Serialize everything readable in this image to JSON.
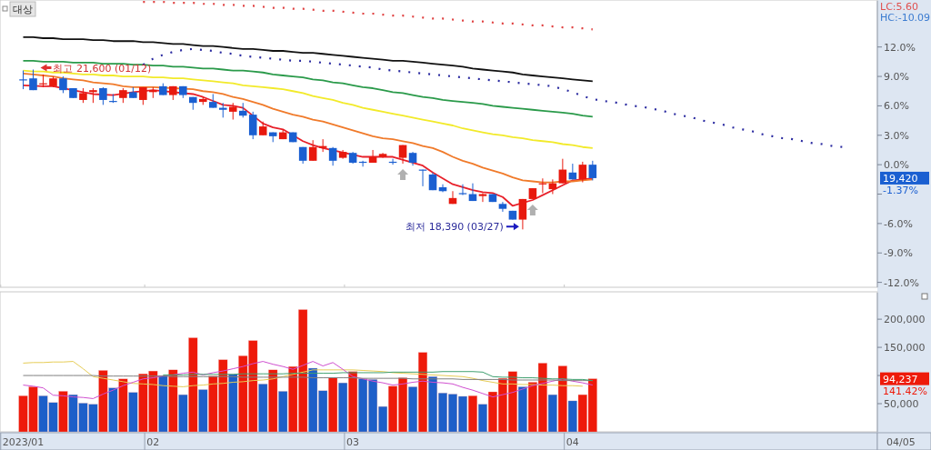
{
  "chart_data": [
    {
      "type": "candlestick",
      "tick_labels": "y",
      "categories": [
        "2023/01",
        null,
        null,
        null,
        null,
        null,
        null,
        null,
        null,
        null,
        null,
        null,
        null,
        "02",
        null,
        null,
        null,
        null,
        null,
        null,
        null,
        null,
        null,
        null,
        null,
        null,
        null,
        null,
        null,
        null,
        null,
        null,
        null,
        "03",
        null,
        null,
        null,
        null,
        null,
        null,
        null,
        null,
        null,
        null,
        null,
        null,
        null,
        null,
        null,
        null,
        null,
        null,
        null,
        null,
        null,
        "04",
        null,
        null,
        null,
        null,
        null,
        null,
        null,
        null,
        null,
        null,
        null,
        null,
        null,
        null,
        null,
        null,
        null,
        null,
        null,
        null,
        null,
        null,
        null,
        null,
        null,
        null,
        null,
        null,
        null,
        null
      ],
      "ylim": [
        -12.5,
        16.7
      ],
      "yticks": [
        {
          "value": -12,
          "label": "-12.0%"
        },
        {
          "value": -9,
          "label": "-9.0%"
        },
        {
          "value": -6,
          "label": "-6.0%"
        },
        {
          "value": -3,
          "label": null
        },
        {
          "value": 0,
          "label": "0.0%"
        },
        {
          "value": 3,
          "label": "3.0%"
        },
        {
          "value": 6,
          "label": "6.0%"
        },
        {
          "value": 9,
          "label": "9.0%"
        },
        {
          "value": 12,
          "label": "12.0%"
        }
      ],
      "ohlc": [
        [
          8.7,
          9.6,
          7.7,
          8.6
        ],
        [
          8.8,
          9.7,
          7.6,
          7.6
        ],
        [
          8.2,
          9.2,
          7.9,
          8.3
        ],
        [
          8.0,
          9.0,
          7.9,
          8.8
        ],
        [
          8.8,
          9.0,
          7.3,
          7.6
        ],
        [
          7.8,
          7.8,
          6.8,
          6.8
        ],
        [
          6.6,
          7.8,
          6.3,
          7.3
        ],
        [
          7.4,
          7.8,
          6.3,
          7.6
        ],
        [
          7.8,
          7.9,
          6.1,
          6.6
        ],
        [
          6.5,
          7.2,
          6.3,
          6.4
        ],
        [
          6.8,
          7.8,
          6.3,
          7.6
        ],
        [
          7.4,
          7.9,
          6.8,
          6.8
        ],
        [
          6.6,
          7.9,
          6.1,
          7.9
        ],
        [
          7.4,
          7.9,
          6.8,
          7.6
        ],
        [
          8.0,
          8.3,
          7.1,
          7.1
        ],
        [
          7.1,
          8.0,
          6.6,
          8.0
        ],
        [
          8.0,
          8.0,
          6.8,
          7.1
        ],
        [
          6.9,
          6.9,
          5.6,
          6.3
        ],
        [
          6.4,
          6.9,
          6.1,
          6.7
        ],
        [
          6.4,
          7.2,
          5.8,
          5.8
        ],
        [
          5.8,
          6.3,
          4.8,
          5.6
        ],
        [
          5.4,
          6.3,
          4.6,
          5.9
        ],
        [
          5.5,
          6.3,
          4.8,
          5.0
        ],
        [
          5.1,
          5.4,
          2.6,
          3.0
        ],
        [
          3.0,
          4.4,
          3.0,
          3.9
        ],
        [
          3.3,
          3.3,
          2.3,
          2.9
        ],
        [
          2.6,
          3.6,
          2.6,
          3.3
        ],
        [
          3.3,
          3.3,
          2.3,
          2.3
        ],
        [
          1.8,
          1.8,
          0.1,
          0.4
        ],
        [
          0.4,
          2.5,
          0.4,
          1.8
        ],
        [
          1.7,
          2.6,
          1.3,
          1.9
        ],
        [
          1.7,
          1.8,
          -0.1,
          0.4
        ],
        [
          0.7,
          1.5,
          0.6,
          1.3
        ],
        [
          1.2,
          1.3,
          0.1,
          0.2
        ],
        [
          0.3,
          0.4,
          -0.2,
          0.2
        ],
        [
          0.2,
          1.5,
          0.2,
          0.8
        ],
        [
          0.8,
          1.2,
          0.7,
          1.1
        ],
        [
          0.3,
          0.6,
          0.0,
          0.2
        ],
        [
          0.7,
          2.0,
          0.1,
          2.0
        ],
        [
          1.2,
          1.3,
          -0.1,
          0.2
        ],
        [
          -0.5,
          -0.5,
          -2.2,
          -0.6
        ],
        [
          -1.0,
          -0.8,
          -2.6,
          -2.6
        ],
        [
          -2.3,
          -2.0,
          -2.8,
          -2.7
        ],
        [
          -4.0,
          -2.7,
          -4.0,
          -3.4
        ],
        [
          -2.9,
          -2.0,
          -3.1,
          -3.0
        ],
        [
          -3.0,
          -1.9,
          -3.7,
          -3.7
        ],
        [
          -3.2,
          -2.9,
          -3.8,
          -3.0
        ],
        [
          -3.0,
          -3.0,
          -3.8,
          -3.8
        ],
        [
          -4.0,
          -3.8,
          -4.8,
          -4.5
        ],
        [
          -4.7,
          -4.7,
          -5.6,
          -5.6
        ],
        [
          -5.6,
          -3.5,
          -6.6,
          -3.5
        ],
        [
          -3.5,
          -2.4,
          -3.5,
          -2.4
        ],
        [
          -2.0,
          -1.4,
          -2.9,
          -1.9
        ],
        [
          -2.5,
          -1.5,
          -3.0,
          -1.9
        ],
        [
          -1.9,
          0.6,
          -1.9,
          -0.5
        ],
        [
          -0.8,
          0.1,
          -1.5,
          -1.5
        ],
        [
          -1.5,
          0.3,
          -1.8,
          0.0
        ],
        [
          0.0,
          0.4,
          -1.6,
          -1.37
        ],
        null,
        null,
        null,
        null,
        null,
        null,
        null,
        null,
        null,
        null,
        null,
        null,
        null,
        null,
        null,
        null,
        null,
        null,
        null,
        null,
        null,
        null,
        null,
        null,
        null,
        null,
        null,
        null
      ],
      "colors": [
        "#1a5fd1",
        "#1a5fd1",
        "#e8190e",
        "#e8190e",
        "#1a5fd1",
        "#1a5fd1",
        "#e8190e",
        "#e8190e",
        "#1a5fd1",
        "#1a5fd1",
        "#e8190e",
        "#1a5fd1",
        "#e8190e",
        "#e8190e",
        "#1a5fd1",
        "#e8190e",
        "#1a5fd1",
        "#1a5fd1",
        "#e8190e",
        "#1a5fd1",
        "#1a5fd1",
        "#e8190e",
        "#1a5fd1",
        "#1a5fd1",
        "#e8190e",
        "#1a5fd1",
        "#e8190e",
        "#1a5fd1",
        "#1a5fd1",
        "#e8190e",
        "#e8190e",
        "#1a5fd1",
        "#e8190e",
        "#1a5fd1",
        "#1a5fd1",
        "#e8190e",
        "#e8190e",
        "#1a5fd1",
        "#e8190e",
        "#1a5fd1",
        "#1a5fd1",
        "#1a5fd1",
        "#1a5fd1",
        "#e8190e",
        "#1a5fd1",
        "#1a5fd1",
        "#e8190e",
        "#1a5fd1",
        "#1a5fd1",
        "#1a5fd1",
        "#e8190e",
        "#e8190e",
        "#e8190e",
        "#e8190e",
        "#e8190e",
        "#1a5fd1",
        "#e8190e",
        "#1a5fd1",
        null,
        null,
        null,
        null,
        null,
        null,
        null,
        null,
        null,
        null,
        null,
        null,
        null,
        null,
        null,
        null,
        null,
        null,
        null,
        null,
        null,
        null,
        null,
        null,
        null,
        null,
        null,
        null
      ],
      "series": [
        {
          "type": "line",
          "color": "#e8202a",
          "values": [
            8.1,
            null,
            8.0,
            8.0,
            null,
            null,
            7.4,
            7.2,
            null,
            7.1,
            null,
            7.4,
            null,
            7.6,
            null,
            null,
            null,
            7.2,
            6.9,
            6.5,
            6.1,
            6.0,
            5.8,
            null,
            4.2,
            3.8,
            3.6,
            null,
            2.4,
            2.0,
            1.7,
            null,
            null,
            null,
            0.8,
            0.8,
            0.8,
            0.8,
            null,
            null,
            -0.1,
            -0.8,
            -1.4,
            -2.0,
            -2.3,
            -2.6,
            -2.8,
            -2.9,
            -3.3,
            -4.2,
            null,
            -3.6,
            -3.1,
            -2.6,
            -2.1,
            -1.6,
            -1.5,
            -1.4,
            null,
            null,
            null,
            null,
            null,
            null,
            null,
            null,
            null,
            null,
            null,
            null,
            null,
            null,
            null,
            null,
            null,
            null,
            null,
            null,
            null,
            null,
            null,
            null,
            null,
            null,
            null,
            null
          ]
        },
        {
          "type": "line",
          "color": "#f07a2a",
          "values": [
            9.3,
            9.2,
            9.1,
            9.0,
            8.8,
            8.7,
            8.6,
            8.4,
            8.3,
            8.2,
            8.0,
            7.9,
            7.9,
            7.9,
            null,
            7.8,
            null,
            7.7,
            7.5,
            7.4,
            7.2,
            6.9,
            6.7,
            6.4,
            6.1,
            5.7,
            5.4,
            5.1,
            4.9,
            4.6,
            4.4,
            4.1,
            3.8,
            3.5,
            3.2,
            2.9,
            2.7,
            2.6,
            2.4,
            2.2,
            1.9,
            1.7,
            1.3,
            0.8,
            0.4,
            0.1,
            -0.3,
            -0.6,
            -0.9,
            -1.3,
            -1.6,
            -1.7,
            -1.8,
            -1.8,
            -1.7,
            -1.7,
            -1.6,
            -1.5,
            null,
            null,
            null,
            null,
            null,
            null,
            null,
            null,
            null,
            null,
            null,
            null,
            null,
            null,
            null,
            null,
            null,
            null,
            null,
            null,
            null,
            null,
            null,
            null,
            null,
            null,
            null,
            null
          ]
        },
        {
          "type": "line",
          "color": "#f2ea2a",
          "values": [
            9.6,
            9.5,
            9.5,
            9.4,
            9.4,
            9.3,
            9.2,
            9.2,
            9.1,
            9.1,
            9.0,
            9.0,
            9.0,
            8.9,
            8.9,
            8.8,
            8.8,
            8.7,
            8.6,
            8.5,
            8.4,
            8.3,
            8.1,
            8.0,
            7.9,
            7.8,
            7.7,
            7.5,
            7.3,
            7.0,
            6.8,
            6.6,
            6.3,
            6.1,
            5.8,
            5.6,
            5.4,
            5.2,
            5.0,
            4.8,
            4.6,
            4.4,
            4.2,
            4.0,
            3.7,
            3.5,
            3.3,
            3.1,
            3.0,
            2.8,
            2.7,
            2.5,
            2.4,
            2.3,
            2.1,
            2.0,
            1.8,
            1.7,
            null,
            null,
            null,
            null,
            null,
            null,
            null,
            null,
            null,
            null,
            null,
            null,
            null,
            null,
            null,
            null,
            null,
            null,
            null,
            null,
            null,
            null,
            null,
            null,
            null,
            null,
            null,
            null
          ]
        },
        {
          "type": "line",
          "color": "#2a9a4a",
          "values": [
            10.6,
            10.6,
            10.5,
            10.5,
            10.5,
            10.4,
            10.4,
            10.4,
            10.3,
            10.3,
            10.3,
            10.2,
            10.2,
            10.1,
            10.1,
            10.0,
            10.0,
            9.9,
            9.8,
            9.8,
            9.7,
            9.6,
            9.6,
            9.5,
            9.4,
            9.2,
            9.1,
            9.0,
            8.9,
            8.7,
            8.6,
            8.4,
            8.3,
            8.1,
            7.9,
            7.8,
            7.6,
            7.4,
            7.3,
            7.1,
            6.9,
            6.8,
            6.6,
            6.5,
            6.4,
            6.3,
            6.2,
            6.0,
            5.9,
            5.8,
            5.7,
            5.6,
            5.5,
            5.4,
            5.3,
            5.2,
            5.0,
            4.9,
            null,
            null,
            null,
            null,
            null,
            null,
            null,
            null,
            null,
            null,
            null,
            null,
            null,
            null,
            null,
            null,
            null,
            null,
            null,
            null,
            null,
            null,
            null,
            null,
            null,
            null,
            null,
            null
          ]
        },
        {
          "type": "line",
          "color": "#111111",
          "values": [
            13.0,
            13.0,
            12.9,
            12.9,
            12.8,
            12.8,
            12.8,
            12.7,
            12.7,
            12.6,
            12.6,
            12.6,
            12.5,
            12.5,
            12.4,
            12.3,
            12.3,
            12.2,
            12.1,
            12.1,
            12.0,
            11.9,
            11.8,
            11.8,
            11.7,
            11.6,
            11.6,
            11.5,
            11.4,
            11.4,
            11.3,
            11.2,
            11.1,
            11.0,
            10.9,
            10.8,
            10.7,
            10.6,
            10.6,
            10.5,
            10.4,
            10.3,
            10.2,
            10.1,
            10.0,
            9.8,
            9.7,
            9.6,
            9.5,
            9.4,
            9.2,
            9.1,
            9.0,
            8.9,
            8.8,
            8.7,
            8.6,
            8.5,
            null,
            null,
            null,
            null,
            null,
            null,
            null,
            null,
            null,
            null,
            null,
            null,
            null,
            null,
            null,
            null,
            null,
            null,
            null,
            null,
            null,
            null,
            null,
            null,
            null,
            null,
            null,
            null
          ]
        },
        {
          "type": "line",
          "color": "#2a2aa0",
          "line_style": "dotted",
          "values": [
            null,
            null,
            null,
            null,
            null,
            null,
            null,
            null,
            null,
            null,
            null,
            null,
            10.2,
            10.8,
            11.2,
            11.5,
            11.7,
            11.8,
            11.7,
            11.6,
            11.4,
            11.3,
            11.1,
            11.0,
            10.9,
            10.8,
            10.7,
            10.6,
            10.6,
            10.5,
            10.4,
            10.3,
            10.2,
            10.1,
            10.0,
            9.9,
            9.7,
            9.6,
            9.5,
            9.4,
            9.3,
            9.2,
            9.1,
            9.0,
            8.9,
            8.8,
            8.7,
            8.6,
            8.5,
            8.4,
            8.3,
            8.2,
            8.1,
            8.0,
            7.7,
            7.4,
            7.0,
            6.7,
            6.5,
            6.4,
            6.2,
            6.0,
            5.9,
            5.7,
            5.5,
            5.2,
            5.0,
            4.8,
            4.5,
            4.3,
            4.1,
            3.8,
            3.6,
            3.4,
            3.1,
            2.9,
            2.7,
            2.6,
            2.4,
            2.2,
            2.1,
            1.9,
            1.8,
            null,
            null,
            null
          ]
        },
        {
          "type": "line",
          "color": "#e04040",
          "line_style": "dotted",
          "values": [
            null,
            null,
            null,
            null,
            null,
            null,
            null,
            null,
            null,
            null,
            null,
            null,
            16.6,
            16.6,
            16.6,
            16.5,
            16.5,
            16.5,
            16.4,
            16.4,
            16.3,
            16.3,
            16.2,
            16.2,
            16.1,
            16.0,
            16.0,
            15.9,
            15.9,
            15.8,
            15.7,
            15.7,
            15.6,
            15.5,
            15.4,
            15.4,
            15.3,
            15.2,
            15.2,
            15.1,
            15.0,
            14.9,
            14.9,
            14.8,
            14.7,
            14.6,
            14.6,
            14.5,
            14.4,
            14.4,
            14.3,
            14.2,
            14.2,
            14.1,
            14.0,
            14.0,
            13.9,
            13.8,
            null,
            null,
            null,
            null,
            null,
            null,
            null,
            null,
            null,
            null,
            null,
            null,
            null,
            null,
            null,
            null,
            null,
            null,
            null,
            null,
            null,
            null,
            null,
            null,
            null,
            null,
            null,
            null
          ]
        }
      ],
      "annotations": [
        "대상",
        "LC:5.60",
        "HC:-10.09",
        "19,420",
        "-1.37%",
        "최고 21,600 (01/12)",
        "최저 18,390 (03/27)"
      ]
    },
    {
      "type": "bar",
      "categories": [
        "2023/01",
        null,
        null,
        null,
        null,
        null,
        null,
        null,
        null,
        null,
        null,
        null,
        null,
        "02",
        null,
        null,
        null,
        null,
        null,
        null,
        null,
        null,
        null,
        null,
        null,
        null,
        null,
        null,
        null,
        null,
        null,
        null,
        null,
        "03",
        null,
        null,
        null,
        null,
        null,
        null,
        null,
        null,
        null,
        null,
        null,
        null,
        null,
        null,
        null,
        null,
        null,
        null,
        null,
        null,
        null,
        "04",
        null,
        null,
        null,
        null,
        null,
        null,
        null,
        null,
        null,
        null,
        null,
        null,
        null,
        null,
        null,
        null,
        null,
        null,
        null,
        null,
        null,
        null,
        null,
        null,
        null,
        null,
        null,
        null,
        null,
        null
      ],
      "ylim": [
        0,
        247000
      ],
      "yticks": [
        {
          "value": 50000,
          "label": "50,000"
        },
        {
          "value": 100000,
          "label": null
        },
        {
          "value": 150000,
          "label": "150,000"
        },
        {
          "value": 200000,
          "label": "200,000"
        }
      ],
      "series": [
        {
          "values": [
            64000,
            80000,
            64000,
            52000,
            72000,
            66000,
            51000,
            49000,
            109000,
            78000,
            94000,
            70000,
            103000,
            108000,
            100000,
            110000,
            66000,
            167000,
            75000,
            99000,
            128000,
            102000,
            135000,
            162000,
            85000,
            110000,
            72000,
            116000,
            217000,
            113000,
            73000,
            96000,
            87000,
            107000,
            94000,
            93000,
            45000,
            81000,
            96000,
            80000,
            141000,
            98000,
            69000,
            67000,
            63000,
            64000,
            49000,
            71000,
            95000,
            107000,
            80000,
            88000,
            122000,
            66000,
            117000,
            55000,
            66000,
            94237,
            null,
            null,
            null,
            null,
            null,
            null,
            null,
            null,
            null,
            null,
            null,
            null,
            null,
            null,
            null,
            null,
            null,
            null,
            null,
            null,
            null,
            null,
            null,
            null,
            null,
            null,
            null,
            null
          ],
          "colors": [
            "#ee1a0a",
            "#ee1a0a",
            "#1d5fc9",
            "#1d5fc9",
            "#ee1a0a",
            "#1d5fc9",
            "#1d5fc9",
            "#1d5fc9",
            "#ee1a0a",
            "#1d5fc9",
            "#ee1a0a",
            "#1d5fc9",
            "#ee1a0a",
            "#ee1a0a",
            "#1d5fc9",
            "#ee1a0a",
            "#1d5fc9",
            "#ee1a0a",
            "#1d5fc9",
            "#ee1a0a",
            "#ee1a0a",
            "#1d5fc9",
            "#ee1a0a",
            "#ee1a0a",
            "#1d5fc9",
            "#ee1a0a",
            "#1d5fc9",
            "#ee1a0a",
            "#ee1a0a",
            "#1d5fc9",
            "#1d5fc9",
            "#ee1a0a",
            "#1d5fc9",
            "#ee1a0a",
            "#1d5fc9",
            "#1d5fc9",
            "#1d5fc9",
            "#ee1a0a",
            "#ee1a0a",
            "#1d5fc9",
            "#ee1a0a",
            "#1d5fc9",
            "#1d5fc9",
            "#1d5fc9",
            "#1d5fc9",
            "#ee1a0a",
            "#1d5fc9",
            "#ee1a0a",
            "#ee1a0a",
            "#ee1a0a",
            "#1d5fc9",
            "#ee1a0a",
            "#ee1a0a",
            "#1d5fc9",
            "#ee1a0a",
            "#1d5fc9",
            "#ee1a0a",
            "#ee1a0a",
            null,
            null,
            null,
            null,
            null,
            null,
            null,
            null,
            null,
            null,
            null,
            null,
            null,
            null,
            null,
            null,
            null,
            null,
            null,
            null,
            null,
            null,
            null,
            null,
            null,
            null,
            null,
            null
          ]
        },
        {
          "type": "line",
          "color": "#e6cc55",
          "values": [
            122000,
            123000,
            123000,
            124000,
            124000,
            125000,
            112000,
            98000,
            95000,
            92000,
            89000,
            86000,
            85000,
            84000,
            82000,
            81000,
            80000,
            82000,
            83000,
            85000,
            86000,
            88000,
            89000,
            91000,
            92000,
            94000,
            98000,
            102000,
            106000,
            110000,
            110000,
            110000,
            110000,
            110000,
            109000,
            108000,
            107000,
            105000,
            104000,
            103000,
            102000,
            101000,
            100000,
            99000,
            98000,
            95000,
            91000,
            88000,
            85000,
            85000,
            84000,
            84000,
            83000,
            83000,
            82000,
            82000,
            81000,
            null,
            null,
            null,
            null,
            null,
            null,
            null,
            null,
            null,
            null,
            null,
            null,
            null,
            null,
            null,
            null,
            null,
            null,
            null,
            null,
            null,
            null,
            null,
            null,
            null,
            null,
            null,
            null,
            null
          ]
        },
        {
          "type": "line",
          "color": "#d050d0",
          "values": [
            83000,
            81000,
            78000,
            65000,
            64000,
            62000,
            61000,
            59000,
            67000,
            74000,
            82000,
            88000,
            94000,
            96000,
            99000,
            101000,
            104000,
            106000,
            101000,
            105000,
            108000,
            112000,
            116000,
            121000,
            125000,
            120000,
            116000,
            111000,
            118000,
            125000,
            117000,
            123000,
            111000,
            98000,
            94000,
            90000,
            87000,
            83000,
            85000,
            88000,
            90000,
            88000,
            87000,
            85000,
            79000,
            74000,
            68000,
            62000,
            66000,
            70000,
            76000,
            82000,
            86000,
            90000,
            94000,
            90000,
            87000,
            83000,
            null,
            null,
            null,
            null,
            null,
            null,
            null,
            null,
            null,
            null,
            null,
            null,
            null,
            null,
            null,
            null,
            null,
            null,
            null,
            null,
            null,
            null,
            null,
            null,
            null,
            null,
            null,
            null
          ]
        },
        {
          "type": "line",
          "color": "#808080",
          "values": [
            100000,
            100000,
            100000,
            100000,
            100000,
            100000,
            100000,
            100000,
            99000,
            99000,
            99000,
            99000,
            99000,
            99000,
            99000,
            98000,
            98000,
            98000,
            98000,
            98000,
            98000,
            98000,
            97000,
            97000,
            97000,
            97000,
            97000,
            97000,
            97000,
            96000,
            96000,
            96000,
            96000,
            96000,
            95000,
            95000,
            95000,
            95000,
            95000,
            94000,
            94000,
            94000,
            94000,
            94000,
            93000,
            93000,
            93000,
            93000,
            93000,
            92000,
            92000,
            92000,
            92000,
            92000,
            91000,
            91000,
            91000,
            91000,
            null,
            null,
            null,
            null,
            null,
            null,
            null,
            null,
            null,
            null,
            null,
            null,
            null,
            null,
            null,
            null,
            null,
            null,
            null,
            null,
            null,
            null,
            null,
            null,
            null,
            null,
            null,
            null
          ]
        },
        {
          "type": "line",
          "color": "#40a070",
          "values": [
            null,
            null,
            null,
            null,
            null,
            null,
            null,
            null,
            null,
            null,
            null,
            null,
            null,
            null,
            101000,
            101000,
            101000,
            102000,
            102000,
            102000,
            102000,
            102000,
            103000,
            103000,
            103000,
            103000,
            103000,
            104000,
            104000,
            104000,
            104000,
            104000,
            105000,
            105000,
            105000,
            105000,
            105000,
            106000,
            106000,
            106000,
            106000,
            106000,
            107000,
            107000,
            107000,
            107000,
            106000,
            98000,
            97000,
            97000,
            96000,
            96000,
            95000,
            94000,
            94000,
            93000,
            93000,
            91000,
            null,
            null,
            null,
            null,
            null,
            null,
            null,
            null,
            null,
            null,
            null,
            null,
            null,
            null,
            null,
            null,
            null,
            null,
            null,
            null,
            null,
            null,
            null,
            null,
            null,
            null,
            null,
            null
          ]
        }
      ],
      "annotations": [
        "94,237",
        "141.42%",
        "04/05"
      ]
    }
  ]
}
